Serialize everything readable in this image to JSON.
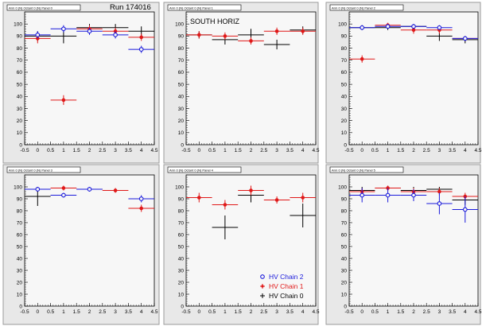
{
  "run_label": "Run 174016",
  "colors": {
    "chain2": "#1a1adb",
    "chain1": "#e01818",
    "chain0": "#000000"
  },
  "legend": [
    {
      "series": "chain2",
      "label": "HV Chain 2",
      "marker": "circle"
    },
    {
      "series": "chain1",
      "label": "HV Chain 1",
      "marker": "star"
    },
    {
      "series": "chain0",
      "label": "HV Chain 0",
      "marker": "cross"
    }
  ],
  "chart_data": [
    {
      "type": "scatter",
      "title": "Arm 0 (N) Octant 0 (N) Panel 0",
      "annotation": "",
      "xlim": [
        -0.5,
        4.5
      ],
      "ylim": [
        0,
        110
      ],
      "xticks": [
        -0.5,
        0,
        0.5,
        1,
        1.5,
        2,
        2.5,
        3,
        3.5,
        4,
        4.5
      ],
      "yticks": [
        0,
        10,
        20,
        30,
        40,
        50,
        60,
        70,
        80,
        90,
        100
      ],
      "series": [
        {
          "key": "chain2",
          "points": [
            [
              0,
              91
            ],
            [
              1,
              96
            ],
            [
              2,
              94
            ],
            [
              3,
              91
            ],
            [
              4,
              79
            ]
          ],
          "xerr": 0.5,
          "yerr": [
            3,
            3,
            3,
            3,
            3
          ]
        },
        {
          "key": "chain1",
          "points": [
            [
              0,
              88
            ],
            [
              1,
              37
            ],
            [
              2,
              96
            ],
            [
              3,
              94
            ],
            [
              4,
              89
            ]
          ],
          "xerr": 0.5,
          "yerr": [
            4,
            4,
            3,
            3,
            3
          ]
        },
        {
          "key": "chain0",
          "points": [
            [
              0,
              90
            ],
            [
              1,
              90
            ],
            [
              2,
              97
            ],
            [
              3,
              97
            ],
            [
              4,
              94
            ]
          ],
          "xerr": 0.5,
          "yerr": [
            4,
            6,
            3,
            3,
            4
          ]
        }
      ]
    },
    {
      "type": "scatter",
      "title": "Arm 0 (N) Octant 0 (N) Panel 1",
      "annotation": "SOUTH HORIZ",
      "xlim": [
        -0.5,
        4.5
      ],
      "ylim": [
        0,
        110
      ],
      "xticks": [
        -0.5,
        0,
        0.5,
        1,
        1.5,
        2,
        2.5,
        3,
        3.5,
        4,
        4.5
      ],
      "yticks": [
        0,
        10,
        20,
        30,
        40,
        50,
        60,
        70,
        80,
        90,
        100
      ],
      "series": [
        {
          "key": "chain1",
          "points": [
            [
              0,
              91
            ],
            [
              1,
              90
            ],
            [
              2,
              86
            ],
            [
              3,
              94
            ],
            [
              4,
              94
            ]
          ],
          "xerr": 0.5,
          "yerr": [
            3,
            3,
            3,
            3,
            3
          ]
        },
        {
          "key": "chain0",
          "points": [
            [
              0,
              91
            ],
            [
              1,
              87
            ],
            [
              2,
              91
            ],
            [
              3,
              83
            ],
            [
              4,
              95
            ]
          ],
          "xerr": 0.5,
          "yerr": [
            3,
            4,
            5,
            4,
            3
          ]
        }
      ]
    },
    {
      "type": "scatter",
      "title": "Arm 0 (N) Octant 0 (N) Panel 2",
      "annotation": "",
      "xlim": [
        -0.5,
        4.5
      ],
      "ylim": [
        0,
        110
      ],
      "xticks": [
        -0.5,
        0,
        0.5,
        1,
        1.5,
        2,
        2.5,
        3,
        3.5,
        4,
        4.5
      ],
      "yticks": [
        0,
        10,
        20,
        30,
        40,
        50,
        60,
        70,
        80,
        90,
        100
      ],
      "series": [
        {
          "key": "chain2",
          "points": [
            [
              0,
              97
            ],
            [
              1,
              98
            ],
            [
              2,
              98
            ],
            [
              3,
              97
            ],
            [
              4,
              88
            ]
          ],
          "xerr": 0.5,
          "yerr": [
            2,
            2,
            2,
            2,
            2
          ]
        },
        {
          "key": "chain1",
          "points": [
            [
              0,
              71
            ],
            [
              1,
              99
            ],
            [
              2,
              95
            ],
            [
              3,
              95
            ],
            [
              4,
              88
            ]
          ],
          "xerr": 0.5,
          "yerr": [
            3,
            2,
            3,
            3,
            2
          ]
        },
        {
          "key": "chain0",
          "points": [
            [
              0,
              97
            ],
            [
              1,
              97
            ],
            [
              2,
              98
            ],
            [
              3,
              90
            ],
            [
              4,
              87
            ]
          ],
          "xerr": 0.5,
          "yerr": [
            2,
            2,
            2,
            4,
            3
          ]
        }
      ]
    },
    {
      "type": "scatter",
      "title": "Arm 0 (N) Octant 0 (N) Panel 3",
      "annotation": "",
      "xlim": [
        -0.5,
        4.5
      ],
      "ylim": [
        0,
        110
      ],
      "xticks": [
        -0.5,
        0,
        0.5,
        1,
        1.5,
        2,
        2.5,
        3,
        3.5,
        4,
        4.5
      ],
      "yticks": [
        0,
        10,
        20,
        30,
        40,
        50,
        60,
        70,
        80,
        90,
        100
      ],
      "series": [
        {
          "key": "chain2",
          "points": [
            [
              0,
              98
            ],
            [
              1,
              93
            ],
            [
              2,
              98
            ],
            [
              4,
              90
            ]
          ],
          "xerr": 0.5,
          "yerr": [
            2,
            2,
            2,
            3
          ]
        },
        {
          "key": "chain1",
          "points": [
            [
              0,
              98
            ],
            [
              1,
              99
            ],
            [
              2,
              98
            ],
            [
              3,
              97
            ],
            [
              4,
              82
            ]
          ],
          "xerr": 0.5,
          "yerr": [
            2,
            2,
            2,
            2,
            3
          ]
        },
        {
          "key": "chain0",
          "points": [
            [
              0,
              92
            ],
            [
              2,
              98
            ]
          ],
          "xerr": 0.5,
          "yerr": [
            8,
            2
          ]
        }
      ]
    },
    {
      "type": "scatter",
      "title": "Arm 0 (N) Octant 0 (N) Panel 4",
      "annotation": "",
      "xlim": [
        -0.5,
        4.5
      ],
      "ylim": [
        0,
        110
      ],
      "xticks": [
        -0.5,
        0,
        0.5,
        1,
        1.5,
        2,
        2.5,
        3,
        3.5,
        4,
        4.5
      ],
      "yticks": [
        0,
        10,
        20,
        30,
        40,
        50,
        60,
        70,
        80,
        90,
        100
      ],
      "showLegend": true,
      "series": [
        {
          "key": "chain1",
          "points": [
            [
              0,
              91
            ],
            [
              1,
              85
            ],
            [
              2,
              97
            ],
            [
              3,
              89
            ],
            [
              4,
              91
            ]
          ],
          "xerr": 0.5,
          "yerr": [
            4,
            4,
            4,
            3,
            4
          ]
        },
        {
          "key": "chain0",
          "points": [
            [
              1,
              66
            ],
            [
              2,
              93
            ],
            [
              4,
              76
            ]
          ],
          "xerr": 0.5,
          "yerr": [
            10,
            6,
            10
          ]
        }
      ]
    },
    {
      "type": "scatter",
      "title": "Arm 0 (N) Octant 0 (N) Panel 5",
      "annotation": "",
      "xlim": [
        -0.5,
        4.5
      ],
      "ylim": [
        0,
        110
      ],
      "xticks": [
        -0.5,
        0,
        0.5,
        1,
        1.5,
        2,
        2.5,
        3,
        3.5,
        4,
        4.5
      ],
      "yticks": [
        0,
        10,
        20,
        30,
        40,
        50,
        60,
        70,
        80,
        90,
        100
      ],
      "series": [
        {
          "key": "chain2",
          "points": [
            [
              0,
              93
            ],
            [
              1,
              93
            ],
            [
              2,
              93
            ],
            [
              3,
              86
            ],
            [
              4,
              81
            ]
          ],
          "xerr": 0.5,
          "yerr": [
            6,
            6,
            5,
            9,
            11
          ]
        },
        {
          "key": "chain1",
          "points": [
            [
              0,
              96
            ],
            [
              1,
              99
            ],
            [
              2,
              96
            ],
            [
              3,
              96
            ],
            [
              4,
              92
            ]
          ],
          "xerr": 0.5,
          "yerr": [
            3,
            2,
            3,
            3,
            3
          ]
        },
        {
          "key": "chain0",
          "points": [
            [
              0,
              97
            ],
            [
              1,
              99
            ],
            [
              2,
              97
            ],
            [
              3,
              98
            ],
            [
              4,
              89
            ]
          ],
          "xerr": 0.5,
          "yerr": [
            3,
            2,
            3,
            2,
            4
          ]
        }
      ]
    }
  ]
}
